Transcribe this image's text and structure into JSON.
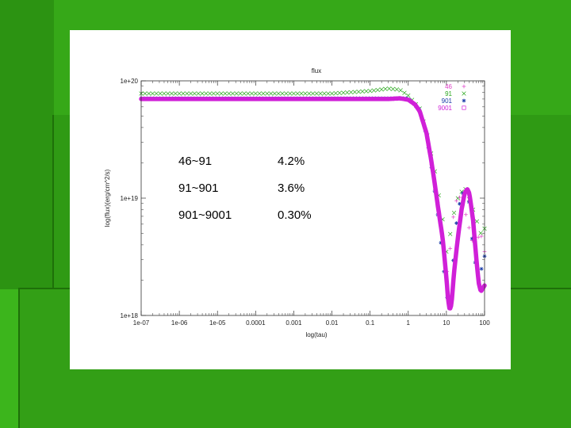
{
  "chart_data": {
    "type": "line",
    "title": "flux",
    "xlabel": "log(tau)",
    "ylabel": "log(flux)(erg/cm^2/s)",
    "xscale": "log",
    "yscale": "log",
    "xlim": [
      1e-07,
      100
    ],
    "ylim": [
      1e+18,
      1e+20
    ],
    "x_ticks": [
      "1e-07",
      "1e-06",
      "1e-05",
      "0.0001",
      "0.001",
      "0.01",
      "0.1",
      "1",
      "10",
      "100"
    ],
    "y_ticks": [
      "1e+18",
      "1e+19",
      "1e+20"
    ],
    "legend_position": "top-right",
    "series": [
      {
        "name": "46",
        "marker": "+",
        "color": "#e040c8",
        "x": [
          1e-07,
          1e-05,
          0.001,
          0.1,
          1,
          2,
          3,
          4,
          6,
          8,
          10,
          12,
          14,
          20,
          30,
          50,
          80,
          100
        ],
        "y": [
          7e+19,
          7e+19,
          7e+19,
          7e+19,
          7e+19,
          5.5e+19,
          3.5e+19,
          2e+19,
          9e+18,
          4.5e+18,
          2.2e+18,
          3e+18,
          6e+18,
          1.1e+19,
          8e+18,
          4e+18,
          5e+18,
          3.5e+18
        ]
      },
      {
        "name": "91",
        "marker": "x",
        "color": "#2aa81e",
        "x": [
          1e-07,
          1e-05,
          0.001,
          0.01,
          0.1,
          0.3,
          0.6,
          1,
          2,
          3,
          5,
          8,
          10,
          12,
          15,
          20,
          30,
          50,
          80,
          100
        ],
        "y": [
          7.8e+19,
          7.8e+19,
          7.8e+19,
          7.8e+19,
          8.2e+19,
          8.6e+19,
          8.4e+19,
          7.5e+19,
          5.8e+19,
          3.7e+19,
          1.7e+19,
          6.5e+18,
          3.5e+18,
          4.5e+18,
          7e+18,
          1e+19,
          1.25e+19,
          8e+18,
          5e+18,
          5.5e+18
        ]
      },
      {
        "name": "901",
        "marker": "*",
        "color": "#1a3aa8",
        "x": [
          1e-07,
          1e-05,
          0.001,
          0.1,
          1,
          2,
          3,
          4,
          6,
          8,
          10,
          12,
          14,
          16,
          20,
          30,
          40,
          50,
          70,
          100
        ],
        "y": [
          7.1e+19,
          7.1e+19,
          7.1e+19,
          7.1e+19,
          7.1e+19,
          5.7e+19,
          3.4e+19,
          1.9e+19,
          7e+18,
          3e+18,
          1.5e+18,
          1.2e+18,
          1.8e+18,
          4e+18,
          8e+18,
          1.25e+19,
          9e+18,
          3.5e+18,
          2e+18,
          3.2e+18
        ]
      },
      {
        "name": "9001",
        "marker": "square",
        "color": "#d020d8",
        "x": [
          1e-07,
          1e-06,
          1e-05,
          0.0001,
          0.001,
          0.01,
          0.1,
          0.3,
          0.6,
          1,
          1.5,
          2,
          3,
          4,
          5,
          6,
          8,
          10,
          11,
          12,
          13,
          14,
          16,
          20,
          25,
          30,
          35,
          40,
          50,
          60,
          70,
          80,
          100
        ],
        "y": [
          7e+19,
          7e+19,
          7e+19,
          7e+19,
          7e+19,
          7e+19,
          7e+19,
          7e+19,
          7.1e+19,
          6.9e+19,
          6.3e+19,
          5.5e+19,
          3.6e+19,
          2.1e+19,
          1.3e+19,
          8.5e+18,
          4.5e+18,
          2.1e+18,
          1.4e+18,
          1.15e+18,
          1.15e+18,
          1.4e+18,
          2.4e+18,
          4.6e+18,
          8e+18,
          1.1e+19,
          1.2e+19,
          1.1e+19,
          6.5e+18,
          3.2e+18,
          1.9e+18,
          1.6e+18,
          1.8e+18
        ]
      }
    ],
    "annotations": [
      {
        "range": "46~91",
        "value": "4.2%"
      },
      {
        "range": "91~901",
        "value": "3.6%"
      },
      {
        "range": "901~9001",
        "value": "0.30%"
      }
    ]
  }
}
